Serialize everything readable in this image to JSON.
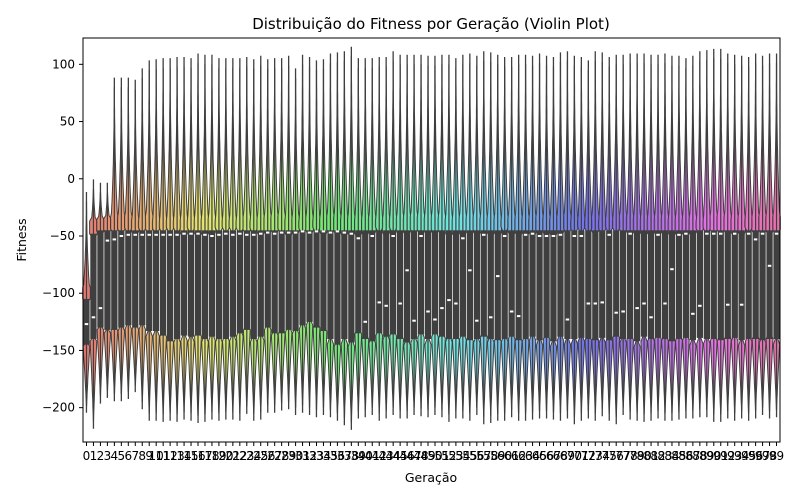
{
  "chart_data": {
    "type": "violin",
    "title": "Distribuição do Fitness por Geração (Violin Plot)",
    "xlabel": "Geração",
    "ylabel": "Fitness",
    "ylim": [
      -230,
      123
    ],
    "yticks": [
      100,
      50,
      0,
      -50,
      -100,
      -150,
      -200
    ],
    "grid": false,
    "legend": "none",
    "categories": [
      "0",
      "1",
      "2",
      "3",
      "4",
      "5",
      "6",
      "7",
      "8",
      "9",
      "10",
      "11",
      "12",
      "13",
      "14",
      "15",
      "16",
      "17",
      "18",
      "19",
      "20",
      "21",
      "22",
      "23",
      "24",
      "25",
      "26",
      "27",
      "28",
      "29",
      "30",
      "31",
      "32",
      "33",
      "34",
      "35",
      "36",
      "37",
      "38",
      "39",
      "40",
      "41",
      "42",
      "43",
      "44",
      "45",
      "46",
      "47",
      "48",
      "49",
      "50",
      "51",
      "52",
      "53",
      "54",
      "55",
      "56",
      "57",
      "58",
      "59",
      "60",
      "61",
      "62",
      "63",
      "64",
      "65",
      "66",
      "67",
      "68",
      "69",
      "70",
      "71",
      "72",
      "73",
      "74",
      "75",
      "76",
      "77",
      "78",
      "79",
      "80",
      "81",
      "82",
      "83",
      "84",
      "85",
      "86",
      "87",
      "88",
      "89",
      "90",
      "91",
      "92",
      "93",
      "94",
      "95",
      "96",
      "97",
      "98",
      "99"
    ],
    "max": [
      -20,
      -9,
      -12,
      -12,
      80,
      80,
      80,
      78,
      88,
      95,
      96,
      97,
      97,
      98,
      98,
      97,
      101,
      100,
      100,
      97,
      97,
      97,
      97,
      98,
      96,
      99,
      96,
      97,
      97,
      99,
      88,
      100,
      98,
      95,
      96,
      101,
      102,
      103,
      107,
      97,
      97,
      97,
      98,
      98,
      103,
      100,
      100,
      100,
      100,
      99,
      99,
      100,
      100,
      97,
      100,
      101,
      99,
      103,
      102,
      100,
      98,
      98,
      100,
      100,
      99,
      101,
      99,
      98,
      102,
      103,
      99,
      98,
      95,
      103,
      102,
      98,
      100,
      100,
      101,
      101,
      101,
      100,
      100,
      101,
      99,
      99,
      97,
      99,
      103,
      104,
      105,
      105,
      101,
      100,
      99,
      98,
      101,
      99,
      101,
      101
    ],
    "min": [
      -198,
      -212,
      -190,
      -185,
      -188,
      -188,
      -186,
      -180,
      -195,
      -205,
      -205,
      -206,
      -205,
      -206,
      -204,
      -205,
      -207,
      -206,
      -204,
      -205,
      -204,
      -204,
      -205,
      -199,
      -205,
      -204,
      -198,
      -198,
      -196,
      -195,
      -200,
      -198,
      -200,
      -202,
      -200,
      -202,
      -205,
      -209,
      -213,
      -203,
      -202,
      -200,
      -205,
      -203,
      -200,
      -203,
      -203,
      -200,
      -201,
      -202,
      -200,
      -202,
      -206,
      -203,
      -203,
      -205,
      -200,
      -208,
      -207,
      -205,
      -205,
      -202,
      -205,
      -205,
      -204,
      -203,
      -203,
      -204,
      -205,
      -203,
      -208,
      -205,
      -203,
      -205,
      -201,
      -205,
      -208,
      -200,
      -204,
      -205,
      -206,
      -205,
      -203,
      -205,
      -205,
      -204,
      -203,
      -203,
      -202,
      -202,
      -206,
      -206,
      -203,
      -205,
      -203,
      -205,
      -203,
      -200,
      -203,
      -202
    ],
    "median": [
      -127,
      -121,
      -113,
      -54,
      -53,
      -50,
      -49,
      -49,
      -49,
      -49,
      -49,
      -49,
      -49,
      -49,
      -48,
      -48,
      -48,
      -49,
      -50,
      -49,
      -48,
      -49,
      -48,
      -49,
      -49,
      -48,
      -47,
      -48,
      -47,
      -47,
      -47,
      -46,
      -47,
      -46,
      -46,
      -47,
      -46,
      -47,
      -48,
      -52,
      -125,
      -50,
      -108,
      -111,
      -50,
      -109,
      -80,
      -124,
      -50,
      -116,
      -123,
      -113,
      -106,
      -109,
      -52,
      -80,
      -124,
      -49,
      -121,
      -85,
      -50,
      -116,
      -120,
      -49,
      -48,
      -50,
      -50,
      -50,
      -49,
      -123,
      -50,
      -50,
      -109,
      -109,
      -108,
      -49,
      -117,
      -116,
      -48,
      -113,
      -109,
      -121,
      -49,
      -109,
      -79,
      -49,
      -48,
      -118,
      -111,
      -48,
      -48,
      -48,
      -110,
      -48,
      -110,
      -48,
      -53,
      -48,
      -76,
      -48
    ],
    "q1": [
      -145,
      -140,
      -130,
      -132,
      -132,
      -130,
      -128,
      -130,
      -128,
      -133,
      -133,
      -137,
      -142,
      -140,
      -137,
      -138,
      -137,
      -140,
      -138,
      -140,
      -140,
      -138,
      -135,
      -132,
      -140,
      -138,
      -130,
      -135,
      -135,
      -132,
      -133,
      -128,
      -125,
      -130,
      -133,
      -140,
      -145,
      -140,
      -143,
      -135,
      -140,
      -142,
      -135,
      -138,
      -136,
      -140,
      -143,
      -140,
      -136,
      -140,
      -136,
      -138,
      -140,
      -140,
      -138,
      -141,
      -140,
      -138,
      -140,
      -141,
      -140,
      -138,
      -141,
      -140,
      -138,
      -141,
      -139,
      -142,
      -138,
      -140,
      -140,
      -139,
      -140,
      -141,
      -139,
      -141,
      -138,
      -140,
      -140,
      -142,
      -138,
      -140,
      -139,
      -140,
      -142,
      -140,
      -139,
      -141,
      -139,
      -140,
      -140,
      -141,
      -140,
      -139,
      -141,
      -140,
      -140,
      -141,
      -140,
      -140
    ],
    "q3": [
      -105,
      -48,
      -45,
      -45,
      -45,
      -45,
      -45,
      -45,
      -45,
      -45,
      -45,
      -45,
      -45,
      -45,
      -45,
      -45,
      -45,
      -45,
      -45,
      -45,
      -45,
      -45,
      -45,
      -45,
      -45,
      -45,
      -45,
      -45,
      -45,
      -45,
      -45,
      -45,
      -45,
      -45,
      -45,
      -45,
      -45,
      -45,
      -45,
      -45,
      -45,
      -45,
      -45,
      -45,
      -45,
      -45,
      -45,
      -45,
      -45,
      -45,
      -45,
      -45,
      -45,
      -45,
      -45,
      -45,
      -45,
      -45,
      -45,
      -45,
      -45,
      -45,
      -45,
      -45,
      -45,
      -45,
      -45,
      -45,
      -45,
      -45,
      -45,
      -45,
      -45,
      -45,
      -45,
      -45,
      -45,
      -45,
      -45,
      -45,
      -45,
      -45,
      -45,
      -45,
      -45,
      -45,
      -45,
      -45,
      -45,
      -45,
      -45,
      -45,
      -45,
      -45,
      -45,
      -45,
      -45,
      -45,
      -45,
      -45
    ]
  }
}
